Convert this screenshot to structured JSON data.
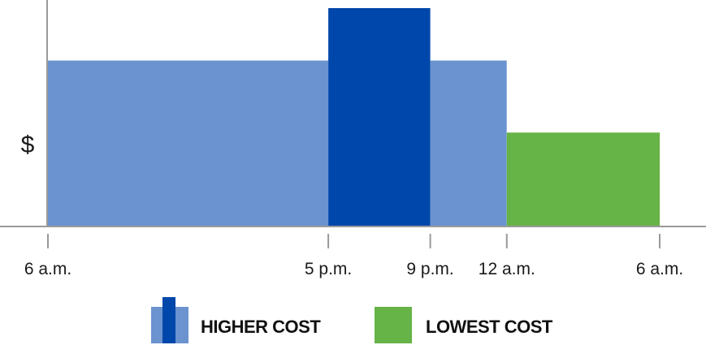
{
  "chart_data": {
    "type": "bar",
    "ylabel": "$",
    "xlabel": "",
    "x_ticks": [
      {
        "label": "6 a.m.",
        "hour": 0
      },
      {
        "label": "5 p.m.",
        "hour": 11
      },
      {
        "label": "9 p.m.",
        "hour": 15
      },
      {
        "label": "12 a.m.",
        "hour": 18
      },
      {
        "label": "6 a.m.",
        "hour": 24
      }
    ],
    "segments": [
      {
        "start_hour": 0,
        "end_hour": 11,
        "level": 0.76,
        "tier": "higher"
      },
      {
        "start_hour": 11,
        "end_hour": 15,
        "level": 1.0,
        "tier": "peak"
      },
      {
        "start_hour": 15,
        "end_hour": 18,
        "level": 0.76,
        "tier": "higher"
      },
      {
        "start_hour": 18,
        "end_hour": 24,
        "level": 0.43,
        "tier": "lowest"
      }
    ],
    "legend": [
      {
        "label": "HIGHER COST",
        "tier": "higher"
      },
      {
        "label": "LOWEST COST",
        "tier": "lowest"
      }
    ],
    "colors": {
      "higher": "#6a93d0",
      "peak": "#0047ab",
      "lowest": "#66b347",
      "axis": "#9a9a9a"
    },
    "grid": false
  }
}
